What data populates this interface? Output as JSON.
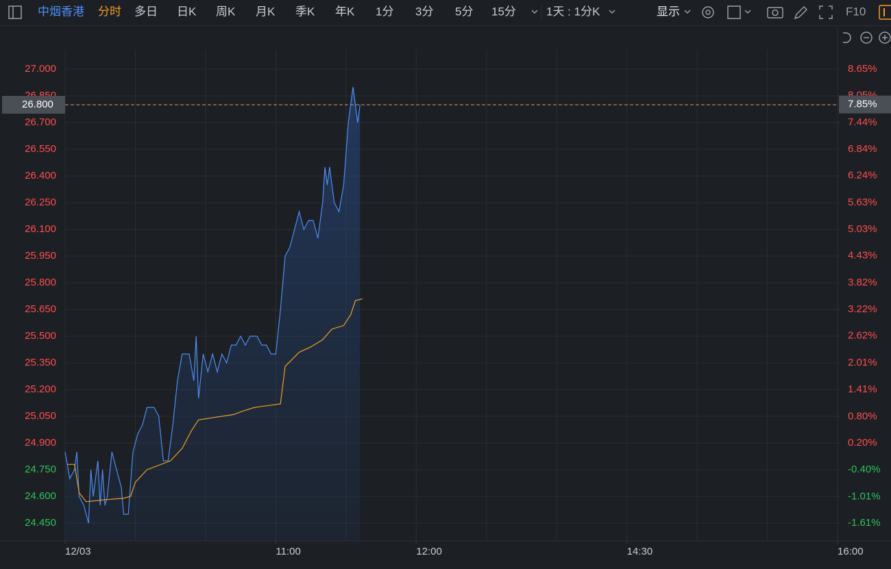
{
  "toolbar": {
    "symbol": "中烟香港",
    "tabs": [
      "分时",
      "多日",
      "日K",
      "周K",
      "月K",
      "季K",
      "年K",
      "1分",
      "3分",
      "5分",
      "15分"
    ],
    "period": "1天 : 1分K",
    "display": "显示",
    "f10": "F10"
  },
  "chart_data": {
    "type": "line",
    "xlim": [
      0,
      330
    ],
    "xticks": [
      {
        "value": 0,
        "label": "12/03"
      },
      {
        "value": 90,
        "label": "11:00"
      },
      {
        "value": 150,
        "label": "12:00"
      },
      {
        "value": 240,
        "label": "14:30"
      },
      {
        "value": 330,
        "label": "16:00"
      }
    ],
    "xgrid": [
      0,
      30,
      60,
      90,
      120,
      150,
      180,
      210,
      240,
      270,
      300,
      330
    ],
    "ylim": [
      24.35,
      27.1
    ],
    "yticks": [
      {
        "value": 27.0,
        "label": "27.000"
      },
      {
        "value": 26.85,
        "label": "26.850"
      },
      {
        "value": 26.7,
        "label": "26.700"
      },
      {
        "value": 26.55,
        "label": "26.550"
      },
      {
        "value": 26.4,
        "label": "26.400"
      },
      {
        "value": 26.25,
        "label": "26.250"
      },
      {
        "value": 26.1,
        "label": "26.100"
      },
      {
        "value": 25.95,
        "label": "25.950"
      },
      {
        "value": 25.8,
        "label": "25.800"
      },
      {
        "value": 25.65,
        "label": "25.650"
      },
      {
        "value": 25.5,
        "label": "25.500"
      },
      {
        "value": 25.35,
        "label": "25.350"
      },
      {
        "value": 25.2,
        "label": "25.200"
      },
      {
        "value": 25.05,
        "label": "25.050"
      },
      {
        "value": 24.9,
        "label": "24.900"
      },
      {
        "value": 24.75,
        "label": "24.750"
      },
      {
        "value": 24.6,
        "label": "24.600"
      },
      {
        "value": 24.45,
        "label": "24.450"
      }
    ],
    "y2lim": [
      -2.01,
      9.05
    ],
    "y2ticks": [
      {
        "value": 8.65,
        "label": "8.65%"
      },
      {
        "value": 8.05,
        "label": "8.05%"
      },
      {
        "value": 7.44,
        "label": "7.44%"
      },
      {
        "value": 6.84,
        "label": "6.84%"
      },
      {
        "value": 6.24,
        "label": "6.24%"
      },
      {
        "value": 5.63,
        "label": "5.63%"
      },
      {
        "value": 5.03,
        "label": "5.03%"
      },
      {
        "value": 4.43,
        "label": "4.43%"
      },
      {
        "value": 3.82,
        "label": "3.82%"
      },
      {
        "value": 3.22,
        "label": "3.22%"
      },
      {
        "value": 2.62,
        "label": "2.62%"
      },
      {
        "value": 2.01,
        "label": "2.01%"
      },
      {
        "value": 1.41,
        "label": "1.41%"
      },
      {
        "value": 0.8,
        "label": "0.80%"
      },
      {
        "value": 0.2,
        "label": "0.20%"
      },
      {
        "value": -0.4,
        "label": "-0.40%"
      },
      {
        "value": -1.01,
        "label": "-1.01%"
      },
      {
        "value": -1.61,
        "label": "-1.61%"
      }
    ],
    "grid": true,
    "up_color": "#ff4d4f",
    "down_color": "#2fc25b",
    "last_price": 26.8,
    "last_price_label": "26.800",
    "last_change": 7.85,
    "last_change_label": "7.85%",
    "series": [
      {
        "color": "#4d8ef7",
        "x": [
          0,
          2,
          4,
          5,
          6,
          8,
          10,
          11,
          12,
          14,
          15,
          16,
          17,
          18,
          20,
          22,
          24,
          25,
          27,
          29,
          31,
          33,
          35,
          38,
          40,
          42,
          44,
          46,
          48,
          50,
          53,
          55,
          56,
          57,
          59,
          61,
          63,
          65,
          67,
          69,
          71,
          73,
          75,
          77,
          79,
          82,
          84,
          86,
          88,
          90,
          92,
          94,
          96,
          98,
          100,
          102,
          104,
          106,
          108,
          110,
          111,
          112,
          113,
          115,
          117,
          119,
          121,
          123,
          125,
          126
        ],
        "values": [
          24.85,
          24.7,
          24.75,
          24.85,
          24.6,
          24.55,
          24.45,
          24.75,
          24.6,
          24.8,
          24.55,
          24.75,
          24.55,
          24.6,
          24.85,
          24.75,
          24.65,
          24.5,
          24.5,
          24.85,
          24.95,
          25.0,
          25.1,
          25.1,
          25.05,
          24.8,
          24.8,
          25.0,
          25.25,
          25.4,
          25.4,
          25.25,
          25.5,
          25.15,
          25.4,
          25.3,
          25.4,
          25.3,
          25.4,
          25.35,
          25.45,
          25.45,
          25.5,
          25.45,
          25.5,
          25.5,
          25.45,
          25.45,
          25.4,
          25.4,
          25.65,
          25.95,
          26.0,
          26.1,
          26.2,
          26.1,
          26.15,
          26.15,
          26.05,
          26.25,
          26.45,
          26.35,
          26.45,
          26.25,
          26.2,
          26.35,
          26.7,
          26.9,
          26.7,
          26.8
        ]
      },
      {
        "color": "#f0a21c",
        "x": [
          1,
          4,
          6,
          9,
          16,
          25,
          28,
          30,
          35,
          45,
          50,
          54,
          57,
          72,
          76,
          81,
          92,
          94,
          100,
          105,
          110,
          114,
          119,
          122,
          124,
          127
        ],
        "values": [
          24.78,
          24.78,
          24.62,
          24.57,
          24.58,
          24.59,
          24.6,
          24.68,
          24.75,
          24.8,
          24.87,
          24.97,
          25.03,
          25.06,
          25.08,
          25.1,
          25.12,
          25.33,
          25.41,
          25.44,
          25.48,
          25.54,
          25.56,
          25.62,
          25.7,
          25.71
        ]
      }
    ]
  }
}
